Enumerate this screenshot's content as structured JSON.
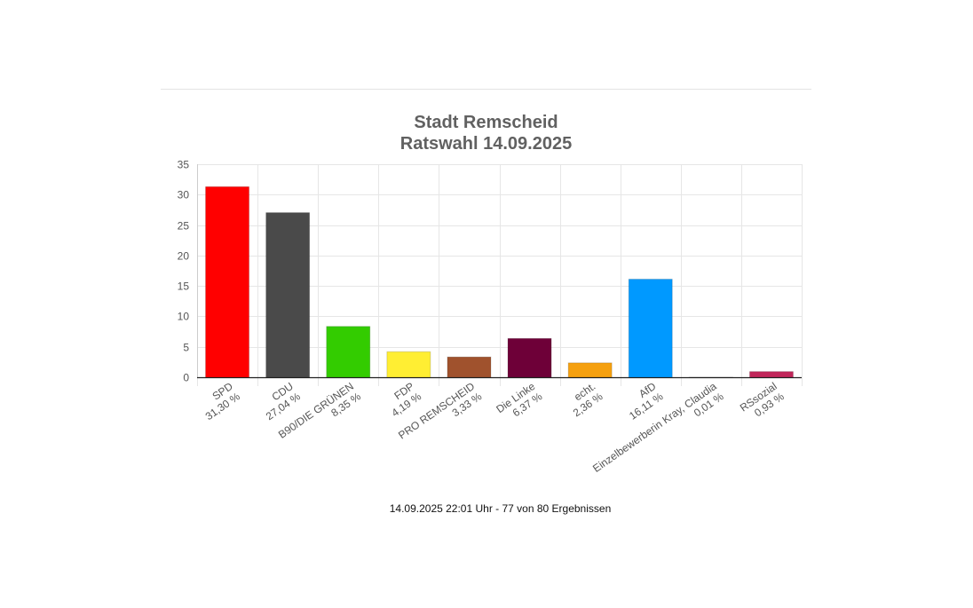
{
  "chart_data": {
    "type": "bar",
    "title": [
      "Stadt Remscheid",
      "Ratswahl 14.09.2025"
    ],
    "categories": [
      "SPD",
      "CDU",
      "B90/DIE GRÜNEN",
      "FDP",
      "PRO REMSCHEID",
      "Die Linke",
      "echt.",
      "AfD",
      "Einzelbewerberin Kray, Claudia",
      "RSsozial"
    ],
    "value_labels": [
      "31,30 %",
      "27,04 %",
      "8,35 %",
      "4,19 %",
      "3,33 %",
      "6,37 %",
      "2,36 %",
      "16,11 %",
      "0,01 %",
      "0,93 %"
    ],
    "values": [
      31.3,
      27.04,
      8.35,
      4.19,
      3.33,
      6.37,
      2.36,
      16.11,
      0.01,
      0.93
    ],
    "colors": [
      "#ff0000",
      "#4a4a4a",
      "#33cc00",
      "#ffee33",
      "#a0522d",
      "#6e0038",
      "#f5a00f",
      "#0099ff",
      "#cccccc",
      "#c0265a"
    ],
    "ylim": [
      0,
      35
    ],
    "yticks": [
      0,
      5,
      10,
      15,
      20,
      25,
      30,
      35
    ],
    "grid": true,
    "xlabel": "",
    "ylabel": ""
  },
  "footnote": "14.09.2025 22:01 Uhr - 77 von 80 Ergebnissen"
}
